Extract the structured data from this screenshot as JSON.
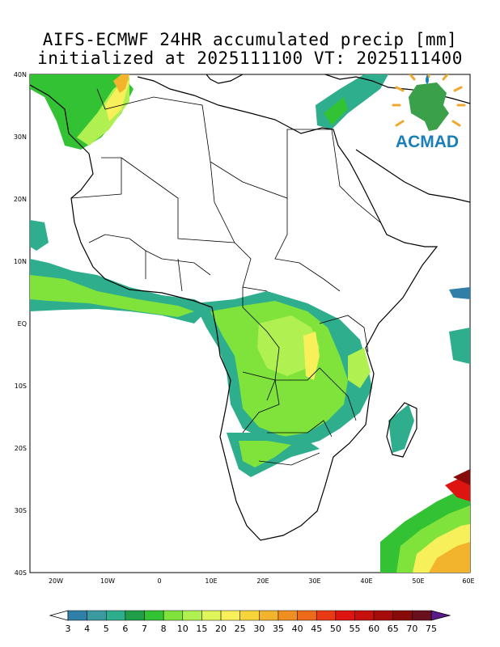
{
  "title": {
    "line1": "AIFS-ECMWF 24HR accumulated precip [mm]",
    "line2": "initialized at 2025111100 VT: 2025111400"
  },
  "logo": {
    "text": "ACMAD"
  },
  "axes": {
    "lat_labels": [
      "40N",
      "30N",
      "20N",
      "10N",
      "EQ",
      "10S",
      "20S",
      "30S",
      "40S"
    ],
    "lon_labels": [
      "20W",
      "10W",
      "0",
      "10E",
      "20E",
      "30E",
      "40E",
      "50E",
      "60E"
    ]
  },
  "colorbar": {
    "labels": [
      "3",
      "4",
      "5",
      "6",
      "7",
      "8",
      "10",
      "15",
      "20",
      "25",
      "30",
      "35",
      "40",
      "45",
      "50",
      "55",
      "60",
      "65",
      "70",
      "75"
    ],
    "colors": [
      "#2f7fa8",
      "#3b9aa0",
      "#2fae8e",
      "#1f9e47",
      "#33c233",
      "#7fe33c",
      "#b0f050",
      "#e0f55a",
      "#f8f05a",
      "#f5d53a",
      "#f2b42d",
      "#ef8f22",
      "#ec6a1a",
      "#e83a14",
      "#de1410",
      "#c5100e",
      "#a70c0c",
      "#870b0b",
      "#6a0f1e"
    ]
  }
}
